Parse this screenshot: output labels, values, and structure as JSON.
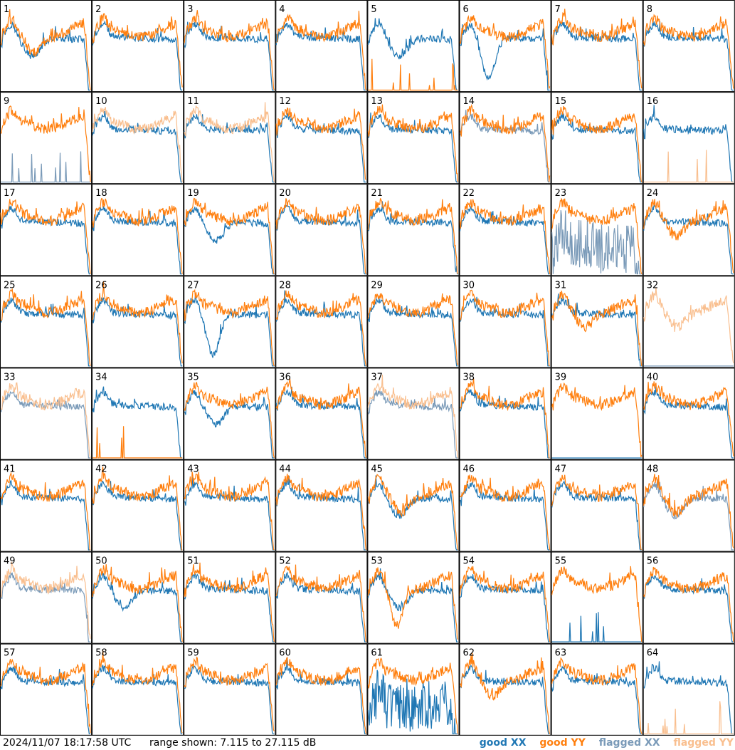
{
  "footer": {
    "timestamp": "2024/11/07 18:17:58 UTC",
    "range_text": "range shown: 7.115 to 27.115 dB"
  },
  "legend": {
    "good_xx": "good XX",
    "good_yy": "good YY",
    "flagged_xx": "flagged XX",
    "flagged_yy": "flagged YY"
  },
  "colors": {
    "good_xx": "#1f77b4",
    "good_yy": "#ff7f0e",
    "flagged_xx": "#7a9ab8",
    "flagged_yy": "#f9bf8f"
  },
  "chart_data": {
    "type": "line",
    "layout": "8x8 small multiples, one per input (1-64), XX and YY spectra",
    "title": "",
    "xlabel": "",
    "ylabel": "",
    "ylim": [
      7.115,
      27.115
    ],
    "unit": "dB",
    "panels": [
      {
        "id": "1",
        "xx": "good",
        "yy": "good",
        "xx_shape": "dip",
        "yy_shape": "dip"
      },
      {
        "id": "2",
        "xx": "good",
        "yy": "good",
        "xx_shape": "normal",
        "yy_shape": "normal"
      },
      {
        "id": "3",
        "xx": "good",
        "yy": "good",
        "xx_shape": "normal",
        "yy_shape": "normal"
      },
      {
        "id": "4",
        "xx": "good",
        "yy": "good",
        "xx_shape": "normal",
        "yy_shape": "normal"
      },
      {
        "id": "5",
        "xx": "good",
        "yy": "good",
        "xx_shape": "dip",
        "yy_shape": "spikes"
      },
      {
        "id": "6",
        "xx": "good",
        "yy": "good",
        "xx_shape": "deepdip",
        "yy_shape": "normal"
      },
      {
        "id": "7",
        "xx": "good",
        "yy": "good",
        "xx_shape": "normal",
        "yy_shape": "normal"
      },
      {
        "id": "8",
        "xx": "good",
        "yy": "good",
        "xx_shape": "normal",
        "yy_shape": "normal"
      },
      {
        "id": "9",
        "xx": "flagged",
        "yy": "good",
        "xx_shape": "spikes",
        "yy_shape": "normal"
      },
      {
        "id": "10",
        "xx": "good",
        "yy": "flagged",
        "xx_shape": "normal",
        "yy_shape": "normal"
      },
      {
        "id": "11",
        "xx": "good",
        "yy": "flagged",
        "xx_shape": "normal",
        "yy_shape": "normal"
      },
      {
        "id": "12",
        "xx": "good",
        "yy": "good",
        "xx_shape": "normal",
        "yy_shape": "normal"
      },
      {
        "id": "13",
        "xx": "good",
        "yy": "good",
        "xx_shape": "normal",
        "yy_shape": "normal"
      },
      {
        "id": "14",
        "xx": "flagged",
        "yy": "good",
        "xx_shape": "normal",
        "yy_shape": "normal"
      },
      {
        "id": "15",
        "xx": "good",
        "yy": "good",
        "xx_shape": "normal",
        "yy_shape": "normal"
      },
      {
        "id": "16",
        "xx": "good",
        "yy": "flagged",
        "xx_shape": "normal",
        "yy_shape": "spikes"
      },
      {
        "id": "17",
        "xx": "good",
        "yy": "good",
        "xx_shape": "normal",
        "yy_shape": "normal"
      },
      {
        "id": "18",
        "xx": "good",
        "yy": "good",
        "xx_shape": "normal",
        "yy_shape": "normal"
      },
      {
        "id": "19",
        "xx": "good",
        "yy": "good",
        "xx_shape": "dip",
        "yy_shape": "normal"
      },
      {
        "id": "20",
        "xx": "good",
        "yy": "good",
        "xx_shape": "normal",
        "yy_shape": "normal"
      },
      {
        "id": "21",
        "xx": "good",
        "yy": "good",
        "xx_shape": "normal",
        "yy_shape": "normal"
      },
      {
        "id": "22",
        "xx": "good",
        "yy": "good",
        "xx_shape": "normal",
        "yy_shape": "normal"
      },
      {
        "id": "23",
        "xx": "flagged",
        "yy": "good",
        "xx_shape": "noisy",
        "yy_shape": "normal"
      },
      {
        "id": "24",
        "xx": "good",
        "yy": "good",
        "xx_shape": "normal",
        "yy_shape": "dip"
      },
      {
        "id": "25",
        "xx": "good",
        "yy": "good",
        "xx_shape": "normal",
        "yy_shape": "normal"
      },
      {
        "id": "26",
        "xx": "good",
        "yy": "good",
        "xx_shape": "normal",
        "yy_shape": "normal"
      },
      {
        "id": "27",
        "xx": "good",
        "yy": "good",
        "xx_shape": "deepdip",
        "yy_shape": "normal"
      },
      {
        "id": "28",
        "xx": "good",
        "yy": "good",
        "xx_shape": "normal",
        "yy_shape": "normal"
      },
      {
        "id": "29",
        "xx": "good",
        "yy": "good",
        "xx_shape": "normal",
        "yy_shape": "normal"
      },
      {
        "id": "30",
        "xx": "good",
        "yy": "good",
        "xx_shape": "normal",
        "yy_shape": "normal"
      },
      {
        "id": "31",
        "xx": "good",
        "yy": "good",
        "xx_shape": "normal",
        "yy_shape": "dip"
      },
      {
        "id": "32",
        "xx": "flagged",
        "yy": "flagged",
        "xx_shape": "baseline",
        "yy_shape": "dip"
      },
      {
        "id": "33",
        "xx": "flagged",
        "yy": "flagged",
        "xx_shape": "normal",
        "yy_shape": "normal"
      },
      {
        "id": "34",
        "xx": "good",
        "yy": "good",
        "xx_shape": "normal",
        "yy_shape": "spikes"
      },
      {
        "id": "35",
        "xx": "good",
        "yy": "good",
        "xx_shape": "dip",
        "yy_shape": "normal"
      },
      {
        "id": "36",
        "xx": "good",
        "yy": "good",
        "xx_shape": "normal",
        "yy_shape": "normal"
      },
      {
        "id": "37",
        "xx": "flagged",
        "yy": "flagged",
        "xx_shape": "normal",
        "yy_shape": "normal"
      },
      {
        "id": "38",
        "xx": "good",
        "yy": "good",
        "xx_shape": "normal",
        "yy_shape": "normal"
      },
      {
        "id": "39",
        "xx": "good",
        "yy": "good",
        "xx_shape": "baseline",
        "yy_shape": "normal"
      },
      {
        "id": "40",
        "xx": "good",
        "yy": "good",
        "xx_shape": "normal",
        "yy_shape": "normal"
      },
      {
        "id": "41",
        "xx": "good",
        "yy": "good",
        "xx_shape": "normal",
        "yy_shape": "normal"
      },
      {
        "id": "42",
        "xx": "good",
        "yy": "good",
        "xx_shape": "normal",
        "yy_shape": "normal"
      },
      {
        "id": "43",
        "xx": "good",
        "yy": "good",
        "xx_shape": "normal",
        "yy_shape": "normal"
      },
      {
        "id": "44",
        "xx": "good",
        "yy": "good",
        "xx_shape": "normal",
        "yy_shape": "normal"
      },
      {
        "id": "45",
        "xx": "good",
        "yy": "good",
        "xx_shape": "dip",
        "yy_shape": "dip"
      },
      {
        "id": "46",
        "xx": "good",
        "yy": "good",
        "xx_shape": "normal",
        "yy_shape": "normal"
      },
      {
        "id": "47",
        "xx": "good",
        "yy": "good",
        "xx_shape": "normal",
        "yy_shape": "normal"
      },
      {
        "id": "48",
        "xx": "flagged",
        "yy": "good",
        "xx_shape": "dip",
        "yy_shape": "dip"
      },
      {
        "id": "49",
        "xx": "flagged",
        "yy": "flagged",
        "xx_shape": "normal",
        "yy_shape": "normal"
      },
      {
        "id": "50",
        "xx": "good",
        "yy": "good",
        "xx_shape": "dip",
        "yy_shape": "normal"
      },
      {
        "id": "51",
        "xx": "good",
        "yy": "good",
        "xx_shape": "normal",
        "yy_shape": "normal"
      },
      {
        "id": "52",
        "xx": "good",
        "yy": "good",
        "xx_shape": "normal",
        "yy_shape": "normal"
      },
      {
        "id": "53",
        "xx": "good",
        "yy": "good",
        "xx_shape": "dip",
        "yy_shape": "deepdip"
      },
      {
        "id": "54",
        "xx": "good",
        "yy": "good",
        "xx_shape": "normal",
        "yy_shape": "normal"
      },
      {
        "id": "55",
        "xx": "good",
        "yy": "good",
        "xx_shape": "spikes",
        "yy_shape": "normal"
      },
      {
        "id": "56",
        "xx": "good",
        "yy": "good",
        "xx_shape": "normal",
        "yy_shape": "normal"
      },
      {
        "id": "57",
        "xx": "good",
        "yy": "good",
        "xx_shape": "normal",
        "yy_shape": "normal"
      },
      {
        "id": "58",
        "xx": "good",
        "yy": "good",
        "xx_shape": "normal",
        "yy_shape": "normal"
      },
      {
        "id": "59",
        "xx": "good",
        "yy": "good",
        "xx_shape": "normal",
        "yy_shape": "normal"
      },
      {
        "id": "60",
        "xx": "good",
        "yy": "good",
        "xx_shape": "normal",
        "yy_shape": "normal"
      },
      {
        "id": "61",
        "xx": "good",
        "yy": "good",
        "xx_shape": "noisy",
        "yy_shape": "normal"
      },
      {
        "id": "62",
        "xx": "good",
        "yy": "good",
        "xx_shape": "normal",
        "yy_shape": "dip"
      },
      {
        "id": "63",
        "xx": "good",
        "yy": "good",
        "xx_shape": "normal",
        "yy_shape": "normal"
      },
      {
        "id": "64",
        "xx": "good",
        "yy": "flagged",
        "xx_shape": "normal",
        "yy_shape": "spikes"
      }
    ]
  }
}
